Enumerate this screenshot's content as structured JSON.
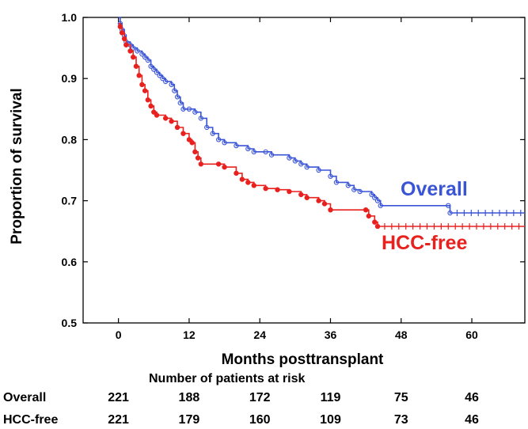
{
  "chart_data": {
    "type": "line",
    "xlabel": "Months posttransplant",
    "ylabel": "Proportion of survival",
    "xlim": [
      -6,
      69
    ],
    "ylim": [
      0.5,
      1.0
    ],
    "xticks": [
      "0",
      "12",
      "24",
      "36",
      "48",
      "60"
    ],
    "yticks": [
      "0.5",
      "0.6",
      "0.7",
      "0.8",
      "0.9",
      "1.0"
    ],
    "grid": false,
    "legend": "inline labels right side",
    "colors": {
      "overall": "#3a54d6",
      "hcc_free": "#e8201e"
    },
    "series": [
      {
        "name": "Overall",
        "label_position": "upper-right",
        "points": [
          [
            0,
            1.0
          ],
          [
            0.3,
            0.99
          ],
          [
            0.6,
            0.98
          ],
          [
            1,
            0.97
          ],
          [
            1.3,
            0.96
          ],
          [
            2,
            0.955
          ],
          [
            2.5,
            0.95
          ],
          [
            3.2,
            0.945
          ],
          [
            4,
            0.94
          ],
          [
            4.5,
            0.935
          ],
          [
            5,
            0.93
          ],
          [
            5.5,
            0.92
          ],
          [
            6,
            0.915
          ],
          [
            6.5,
            0.91
          ],
          [
            7,
            0.905
          ],
          [
            7.5,
            0.9
          ],
          [
            8,
            0.895
          ],
          [
            9,
            0.89
          ],
          [
            9.5,
            0.88
          ],
          [
            10,
            0.87
          ],
          [
            10.5,
            0.86
          ],
          [
            11,
            0.85
          ],
          [
            12,
            0.85
          ],
          [
            13,
            0.845
          ],
          [
            14,
            0.835
          ],
          [
            15,
            0.82
          ],
          [
            16,
            0.81
          ],
          [
            17,
            0.8
          ],
          [
            18,
            0.795
          ],
          [
            20,
            0.79
          ],
          [
            22,
            0.785
          ],
          [
            23,
            0.78
          ],
          [
            25,
            0.78
          ],
          [
            26,
            0.775
          ],
          [
            29,
            0.77
          ],
          [
            30,
            0.765
          ],
          [
            31,
            0.76
          ],
          [
            32,
            0.755
          ],
          [
            34,
            0.75
          ],
          [
            36,
            0.74
          ],
          [
            37,
            0.73
          ],
          [
            39,
            0.725
          ],
          [
            40,
            0.718
          ],
          [
            41,
            0.715
          ],
          [
            43,
            0.71
          ],
          [
            43.5,
            0.705
          ],
          [
            44,
            0.7
          ],
          [
            44.5,
            0.692
          ],
          [
            56,
            0.692
          ],
          [
            56.3,
            0.68
          ],
          [
            69,
            0.68
          ]
        ]
      },
      {
        "name": "HCC-free",
        "label_position": "lower-right",
        "points": [
          [
            0,
            0.99
          ],
          [
            0.3,
            0.985
          ],
          [
            0.6,
            0.975
          ],
          [
            1,
            0.965
          ],
          [
            1.3,
            0.955
          ],
          [
            2,
            0.945
          ],
          [
            2.5,
            0.935
          ],
          [
            3,
            0.92
          ],
          [
            3.5,
            0.905
          ],
          [
            4,
            0.89
          ],
          [
            4.5,
            0.88
          ],
          [
            5,
            0.865
          ],
          [
            5.5,
            0.855
          ],
          [
            6,
            0.845
          ],
          [
            6.5,
            0.84
          ],
          [
            8,
            0.835
          ],
          [
            9,
            0.83
          ],
          [
            10,
            0.82
          ],
          [
            11,
            0.81
          ],
          [
            12,
            0.8
          ],
          [
            12.5,
            0.795
          ],
          [
            13,
            0.78
          ],
          [
            13.5,
            0.77
          ],
          [
            14,
            0.76
          ],
          [
            17,
            0.76
          ],
          [
            18,
            0.755
          ],
          [
            20,
            0.745
          ],
          [
            21,
            0.735
          ],
          [
            22,
            0.73
          ],
          [
            23,
            0.725
          ],
          [
            25,
            0.72
          ],
          [
            27,
            0.718
          ],
          [
            29,
            0.715
          ],
          [
            31,
            0.71
          ],
          [
            32,
            0.705
          ],
          [
            34,
            0.7
          ],
          [
            35,
            0.695
          ],
          [
            36,
            0.685
          ],
          [
            42,
            0.685
          ],
          [
            42.5,
            0.675
          ],
          [
            43.5,
            0.665
          ],
          [
            44,
            0.658
          ],
          [
            69,
            0.658
          ]
        ]
      }
    ]
  },
  "risk_table": {
    "title": "Number of patients at risk",
    "timepoints": [
      0,
      12,
      24,
      36,
      48,
      60
    ],
    "rows": [
      {
        "label": "Overall",
        "values": [
          "221",
          "188",
          "172",
          "119",
          "75",
          "46"
        ]
      },
      {
        "label": "HCC-free",
        "values": [
          "221",
          "179",
          "160",
          "109",
          "73",
          "46"
        ]
      }
    ]
  }
}
